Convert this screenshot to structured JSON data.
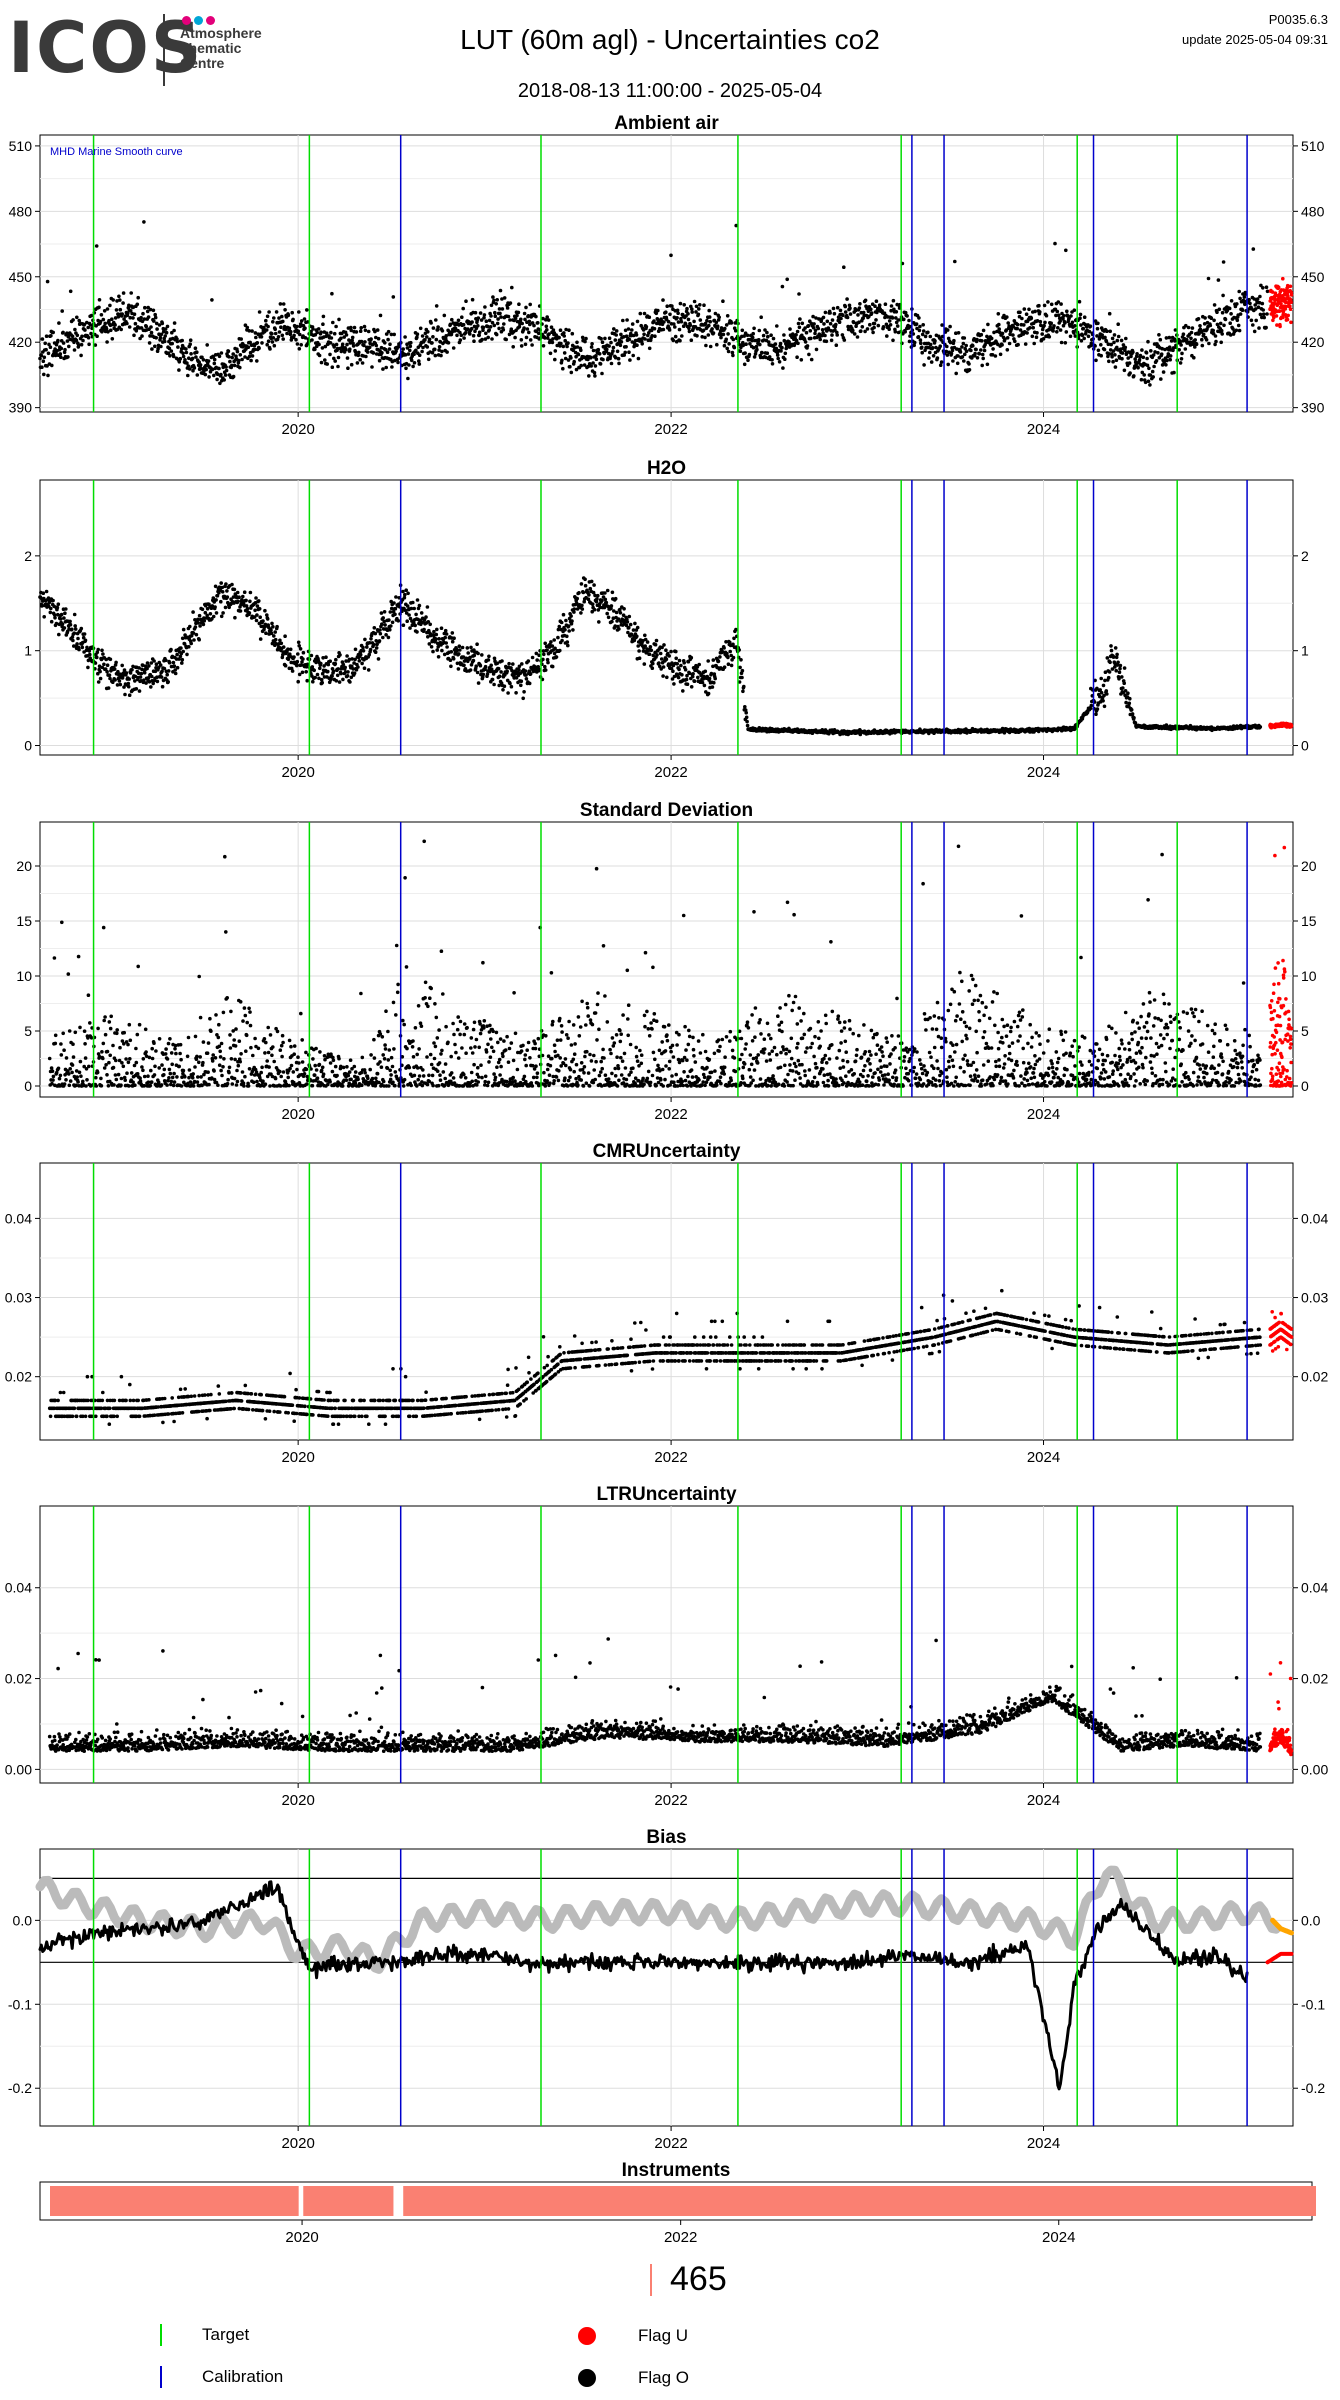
{
  "header": {
    "logo": "ICOS",
    "logo_sub": [
      "Atmosphere",
      "Thematic",
      "Centre"
    ],
    "title": "LUT  (60m agl) - Uncertainties co2",
    "date_range": "2018-08-13 11:00:00 - 2025-05-04",
    "code": "P0035.6.3",
    "update": "update  2025-05-04 09:31"
  },
  "colors": {
    "target": "#00dd00",
    "calibration": "#0000cc",
    "flag_u": "#ff0000",
    "flag_o": "#000000",
    "smooth": "#bbbbbb",
    "bias_recent": "#ffa500",
    "instrument": "#fa8072",
    "grid": "#dddddd",
    "logo_dots": [
      "#e2007a",
      "#00a6d6",
      "#e2007a"
    ]
  },
  "chart_data": [
    {
      "type": "scatter",
      "title": "Ambient air",
      "annotation": "MHD Marine Smooth curve",
      "x_range": [
        "2018-08-13",
        "2025-05-04"
      ],
      "x_ticks": [
        "2020",
        "2022",
        "2024"
      ],
      "ylim": [
        388,
        515
      ],
      "y_ticks": [
        390,
        420,
        450,
        480,
        510
      ],
      "target_lines": [
        "2018-11-26",
        "2020-01-23",
        "2021-04-21",
        "2022-05-12",
        "2023-03-28",
        "2024-03-07",
        "2024-09-19"
      ],
      "calibration_lines": [
        "2020-07-20",
        "2023-04-18",
        "2023-06-20",
        "2024-04-08",
        "2025-02-03"
      ],
      "series": [
        {
          "flag": "O",
          "x": [
            "2018-08-13",
            "2018-10-01",
            "2018-12-01",
            "2019-02-01",
            "2019-04-01",
            "2019-06-01",
            "2019-08-01",
            "2019-10-01",
            "2019-12-01",
            "2020-02-01",
            "2020-04-15",
            "2020-08-01",
            "2020-10-01",
            "2020-12-01",
            "2021-02-01",
            "2021-04-01",
            "2021-06-01",
            "2021-08-01",
            "2021-10-01",
            "2021-12-01",
            "2022-02-01",
            "2022-04-01",
            "2022-06-01",
            "2022-08-01",
            "2022-10-01",
            "2022-12-01",
            "2023-02-01",
            "2023-04-01",
            "2023-06-01",
            "2023-08-01",
            "2023-10-01",
            "2023-12-01",
            "2024-02-01",
            "2024-04-01",
            "2024-06-01",
            "2024-08-01",
            "2024-10-01",
            "2024-12-01",
            "2025-02-01",
            "2025-03-15"
          ],
          "y": [
            412,
            420,
            428,
            432,
            425,
            412,
            406,
            418,
            428,
            422,
            418,
            415,
            420,
            428,
            432,
            428,
            418,
            412,
            420,
            428,
            430,
            425,
            418,
            416,
            425,
            430,
            433,
            428,
            418,
            414,
            422,
            428,
            430,
            424,
            414,
            410,
            420,
            428,
            435,
            436
          ]
        },
        {
          "flag": "U",
          "x": [
            "2025-03-20",
            "2025-04-01",
            "2025-04-15",
            "2025-05-01"
          ],
          "y": [
            436,
            438,
            437,
            439
          ]
        }
      ]
    },
    {
      "type": "scatter",
      "title": "H2O",
      "x_range": [
        "2018-08-13",
        "2025-05-04"
      ],
      "x_ticks": [
        "2020",
        "2022",
        "2024"
      ],
      "ylim": [
        -0.1,
        2.8
      ],
      "y_ticks": [
        0,
        1,
        2
      ],
      "target_lines": [
        "2018-11-26",
        "2020-01-23",
        "2021-04-21",
        "2022-05-12",
        "2023-03-28",
        "2024-03-07",
        "2024-09-19"
      ],
      "calibration_lines": [
        "2020-07-20",
        "2023-04-18",
        "2023-06-20",
        "2024-04-08",
        "2025-02-03"
      ],
      "series": [
        {
          "flag": "O",
          "x": [
            "2018-08-13",
            "2018-10-15",
            "2018-12-15",
            "2019-02-15",
            "2019-04-15",
            "2019-06-15",
            "2019-08-01",
            "2019-10-15",
            "2019-12-15",
            "2020-02-15",
            "2020-04-15",
            "2020-06-01",
            "2020-07-20",
            "2020-09-15",
            "2020-11-15",
            "2021-01-15",
            "2021-03-15",
            "2021-05-15",
            "2021-07-15",
            "2021-09-15",
            "2021-11-15",
            "2022-01-15",
            "2022-03-15",
            "2022-05-10",
            "2022-06-01",
            "2022-12-01",
            "2023-06-01",
            "2023-12-01",
            "2024-03-01",
            "2024-05-01",
            "2024-05-15",
            "2024-07-01",
            "2024-12-01",
            "2025-03-01"
          ],
          "y": [
            1.6,
            1.2,
            0.8,
            0.7,
            0.8,
            1.2,
            1.6,
            1.4,
            0.9,
            0.8,
            0.8,
            1.1,
            1.5,
            1.2,
            0.9,
            0.8,
            0.7,
            1.0,
            1.6,
            1.4,
            1.0,
            0.8,
            0.7,
            1.1,
            0.17,
            0.14,
            0.15,
            0.16,
            0.18,
            0.6,
            1.0,
            0.2,
            0.18,
            0.2
          ]
        },
        {
          "flag": "U",
          "x": [
            "2025-03-20",
            "2025-04-10",
            "2025-05-01"
          ],
          "y": [
            0.2,
            0.22,
            0.21
          ]
        }
      ]
    },
    {
      "type": "scatter",
      "title": "Standard Deviation",
      "x_range": [
        "2018-08-13",
        "2025-05-04"
      ],
      "x_ticks": [
        "2020",
        "2022",
        "2024"
      ],
      "ylim": [
        -1,
        24
      ],
      "y_ticks": [
        0,
        5,
        10,
        15,
        20
      ],
      "target_lines": [
        "2018-11-26",
        "2020-01-23",
        "2021-04-21",
        "2022-05-12",
        "2023-03-28",
        "2024-03-07",
        "2024-09-19"
      ],
      "calibration_lines": [
        "2020-07-20",
        "2023-04-18",
        "2023-06-20",
        "2024-04-08",
        "2025-02-03"
      ],
      "series": [
        {
          "flag": "O",
          "x": [
            "2018-09-01",
            "2019-01-01",
            "2019-05-01",
            "2019-09-01",
            "2020-01-01",
            "2020-05-01",
            "2020-08-01",
            "2020-12-01",
            "2021-04-01",
            "2021-08-01",
            "2021-12-01",
            "2022-04-01",
            "2022-08-01",
            "2022-12-01",
            "2023-04-01",
            "2023-08-01",
            "2023-12-01",
            "2024-04-01",
            "2024-08-01",
            "2024-12-01",
            "2025-03-01"
          ],
          "y": [
            2,
            3,
            2,
            4,
            2,
            1,
            5,
            3,
            2,
            4,
            3,
            2,
            4,
            3,
            2,
            5,
            3,
            2,
            4,
            3,
            2
          ]
        },
        {
          "flag": "U",
          "x": [
            "2025-03-20",
            "2025-04-10",
            "2025-05-01"
          ],
          "y": [
            4,
            6,
            3
          ]
        }
      ]
    },
    {
      "type": "scatter",
      "title": "CMRUncertainty",
      "x_range": [
        "2018-08-13",
        "2025-05-04"
      ],
      "x_ticks": [
        "2020",
        "2022",
        "2024"
      ],
      "ylim": [
        0.012,
        0.047
      ],
      "y_ticks": [
        0.02,
        0.03,
        0.04
      ],
      "target_lines": [
        "2018-11-26",
        "2020-01-23",
        "2021-04-21",
        "2022-05-12",
        "2023-03-28",
        "2024-03-07",
        "2024-09-19"
      ],
      "calibration_lines": [
        "2020-07-20",
        "2023-04-18",
        "2023-06-20",
        "2024-04-08",
        "2025-02-03"
      ],
      "series": [
        {
          "flag": "O",
          "x": [
            "2018-09-01",
            "2019-03-01",
            "2019-09-01",
            "2020-03-01",
            "2020-09-01",
            "2021-03-01",
            "2021-06-01",
            "2021-12-01",
            "2022-06-01",
            "2022-12-01",
            "2023-06-01",
            "2023-10-01",
            "2024-03-01",
            "2024-09-01",
            "2025-03-01"
          ],
          "y": [
            0.016,
            0.016,
            0.017,
            0.016,
            0.016,
            0.017,
            0.022,
            0.023,
            0.023,
            0.023,
            0.025,
            0.027,
            0.025,
            0.024,
            0.025
          ]
        },
        {
          "flag": "U",
          "x": [
            "2025-03-20",
            "2025-04-10",
            "2025-05-01"
          ],
          "y": [
            0.025,
            0.026,
            0.025
          ]
        }
      ]
    },
    {
      "type": "scatter",
      "title": "LTRUncertainty",
      "x_range": [
        "2018-08-13",
        "2025-05-04"
      ],
      "x_ticks": [
        "2020",
        "2022",
        "2024"
      ],
      "ylim": [
        -0.003,
        0.058
      ],
      "y_ticks": [
        0.0,
        0.02,
        0.04
      ],
      "target_lines": [
        "2018-11-26",
        "2020-01-23",
        "2021-04-21",
        "2022-05-12",
        "2023-03-28",
        "2024-03-07",
        "2024-09-19"
      ],
      "calibration_lines": [
        "2020-07-20",
        "2023-04-18",
        "2023-06-20",
        "2024-04-08",
        "2025-02-03"
      ],
      "series": [
        {
          "flag": "O",
          "x": [
            "2018-09-01",
            "2019-03-01",
            "2019-09-01",
            "2020-03-01",
            "2020-09-01",
            "2021-03-01",
            "2021-09-01",
            "2022-03-01",
            "2022-09-01",
            "2023-03-01",
            "2023-09-01",
            "2024-01-15",
            "2024-06-01",
            "2024-10-01",
            "2025-03-01"
          ],
          "y": [
            0.004,
            0.004,
            0.005,
            0.004,
            0.004,
            0.004,
            0.007,
            0.006,
            0.006,
            0.005,
            0.008,
            0.015,
            0.004,
            0.005,
            0.004
          ]
        },
        {
          "flag": "U",
          "x": [
            "2025-03-20",
            "2025-04-10",
            "2025-05-01"
          ],
          "y": [
            0.004,
            0.006,
            0.003
          ]
        }
      ]
    },
    {
      "type": "line",
      "title": "Bias",
      "x_range": [
        "2018-08-13",
        "2025-05-04"
      ],
      "x_ticks": [
        "2020",
        "2022",
        "2024"
      ],
      "ylim": [
        -0.245,
        0.085
      ],
      "y_ticks": [
        0.0,
        -0.1,
        -0.2
      ],
      "hlines": [
        0.05,
        -0.05
      ],
      "target_lines": [
        "2018-11-26",
        "2020-01-23",
        "2021-04-21",
        "2022-05-12",
        "2023-03-28",
        "2024-03-07",
        "2024-09-19"
      ],
      "calibration_lines": [
        "2020-07-20",
        "2023-04-18",
        "2023-06-20",
        "2024-04-08",
        "2025-02-03"
      ],
      "series": [
        {
          "name": "smooth",
          "x": [
            "2018-08-13",
            "2018-11-01",
            "2019-03-01",
            "2019-07-01",
            "2019-11-01",
            "2020-01-01",
            "2020-04-01",
            "2020-06-01",
            "2020-09-01",
            "2021-01-01",
            "2021-05-01",
            "2021-09-01",
            "2022-01-01",
            "2022-05-01",
            "2022-09-01",
            "2023-01-01",
            "2023-04-01",
            "2023-08-01",
            "2023-12-01",
            "2024-03-01",
            "2024-05-01",
            "2024-08-01",
            "2024-11-01",
            "2025-02-01",
            "2025-04-01"
          ],
          "y": [
            0.04,
            0.02,
            0.0,
            -0.01,
            0.0,
            -0.04,
            -0.03,
            -0.05,
            0.0,
            0.01,
            0.0,
            0.01,
            0.01,
            0.0,
            0.01,
            0.02,
            0.02,
            0.01,
            0.0,
            -0.02,
            0.06,
            0.0,
            0.0,
            0.01,
            0.0
          ]
        },
        {
          "name": "bias",
          "x": [
            "2018-08-13",
            "2018-11-01",
            "2019-03-01",
            "2019-07-01",
            "2019-11-20",
            "2020-01-23",
            "2020-04-01",
            "2020-07-01",
            "2020-10-01",
            "2021-01-01",
            "2021-04-01",
            "2021-08-01",
            "2022-01-01",
            "2022-05-01",
            "2022-09-01",
            "2023-01-01",
            "2023-04-01",
            "2023-08-01",
            "2023-12-01",
            "2024-02-01",
            "2024-03-01",
            "2024-04-15",
            "2024-06-01",
            "2024-09-20",
            "2024-12-01",
            "2025-02-03"
          ],
          "y": [
            -0.03,
            -0.02,
            -0.01,
            0.0,
            0.04,
            -0.06,
            -0.05,
            -0.05,
            -0.04,
            -0.04,
            -0.05,
            -0.05,
            -0.05,
            -0.05,
            -0.05,
            -0.05,
            -0.04,
            -0.05,
            -0.03,
            -0.2,
            -0.08,
            -0.01,
            0.02,
            -0.05,
            -0.04,
            -0.07
          ]
        },
        {
          "name": "recent_u",
          "x": [
            "2025-03-15",
            "2025-04-10",
            "2025-05-01"
          ],
          "y": [
            -0.05,
            -0.04,
            -0.04
          ]
        },
        {
          "name": "recent_orange",
          "x": [
            "2025-03-25",
            "2025-04-10",
            "2025-05-01"
          ],
          "y": [
            0.0,
            -0.01,
            -0.015
          ]
        }
      ]
    },
    {
      "type": "bar",
      "title": "Instruments",
      "x_range": [
        "2018-08-13",
        "2025-05-04"
      ],
      "x_ticks": [
        "2020",
        "2022",
        "2024"
      ],
      "segments": [
        [
          "2018-08-13",
          "2019-12-10"
        ],
        [
          "2019-12-15",
          "2020-06-10"
        ],
        [
          "2020-06-25",
          "2025-05-04"
        ]
      ]
    }
  ],
  "counter": "465",
  "legend": [
    {
      "label": "Target",
      "kind": "line",
      "color": "#00dd00"
    },
    {
      "label": "Calibration",
      "kind": "line",
      "color": "#0000cc"
    },
    {
      "label": "Flag U",
      "kind": "dot",
      "color": "#ff0000"
    },
    {
      "label": "Flag O",
      "kind": "dot",
      "color": "#000000"
    }
  ]
}
